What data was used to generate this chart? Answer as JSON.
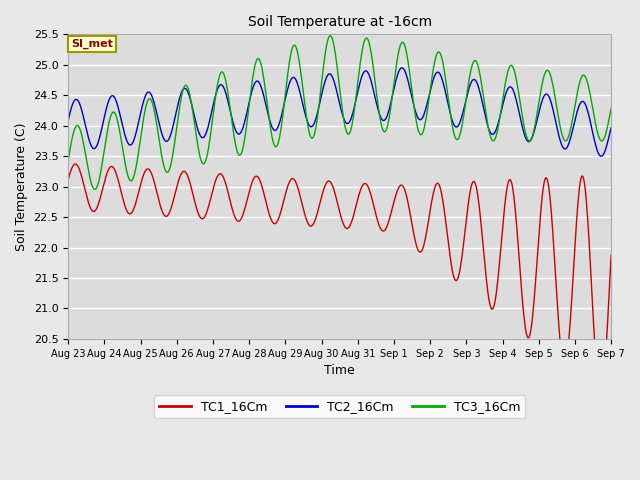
{
  "title": "Soil Temperature at -16cm",
  "xlabel": "Time",
  "ylabel": "Soil Temperature (C)",
  "ylim": [
    20.5,
    25.5
  ],
  "background_color": "#e8e8e8",
  "plot_bg_color": "#dcdcdc",
  "grid_color": "#ffffff",
  "series": {
    "TC1_16Cm": {
      "color": "#cc0000",
      "label": "TC1_16Cm"
    },
    "TC2_16Cm": {
      "color": "#0000cc",
      "label": "TC2_16Cm"
    },
    "TC3_16Cm": {
      "color": "#00aa00",
      "label": "TC3_16Cm"
    }
  },
  "xtick_labels": [
    "Aug 23",
    "Aug 24",
    "Aug 25",
    "Aug 26",
    "Aug 27",
    "Aug 28",
    "Aug 29",
    "Aug 30",
    "Aug 31",
    "Sep 1",
    "Sep 2",
    "Sep 3",
    "Sep 4",
    "Sep 5",
    "Sep 6",
    "Sep 7"
  ],
  "annotation_text": "SI_met",
  "annotation_bg": "#ffffcc",
  "annotation_border": "#999900",
  "figsize": [
    6.4,
    4.8
  ],
  "dpi": 100
}
